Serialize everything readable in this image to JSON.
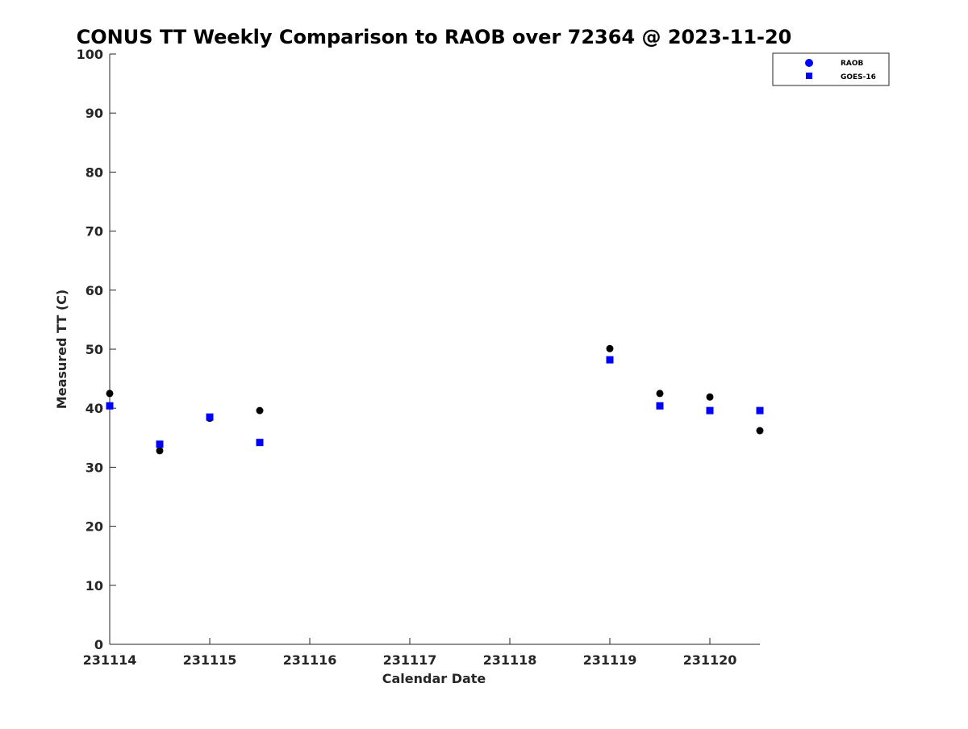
{
  "chart_data": {
    "type": "scatter",
    "title": "CONUS TT Weekly Comparison to RAOB over 72364 @ 2023-11-20",
    "xlabel": "Calendar Date",
    "ylabel": "Measured TT (C)",
    "xlim": [
      0,
      6.5
    ],
    "ylim": [
      0,
      100
    ],
    "x_ticks": [
      0,
      1,
      2,
      3,
      4,
      5,
      6
    ],
    "x_tick_labels": [
      "231114",
      "231115",
      "231116",
      "231117",
      "231118",
      "231119",
      "231120"
    ],
    "y_ticks": [
      0,
      10,
      20,
      30,
      40,
      50,
      60,
      70,
      80,
      90,
      100
    ],
    "y_tick_labels": [
      "0",
      "10",
      "20",
      "30",
      "40",
      "50",
      "60",
      "70",
      "80",
      "90",
      "100"
    ],
    "grid": false,
    "legend_position": "top-right",
    "series": [
      {
        "name": "RAOB",
        "marker": "circle",
        "color": "#000000",
        "legend_color": "#0000ff",
        "x": [
          0,
          0.5,
          1,
          1.5,
          5,
          5.5,
          6,
          6.5
        ],
        "y": [
          42.5,
          32.8,
          38.3,
          39.6,
          50.1,
          42.5,
          41.9,
          36.2
        ]
      },
      {
        "name": "GOES-16",
        "marker": "square",
        "color": "#0000ff",
        "legend_color": "#0000ff",
        "x": [
          0,
          0.5,
          1,
          1.5,
          5,
          5.5,
          6,
          6.5
        ],
        "y": [
          40.4,
          33.9,
          38.5,
          34.2,
          48.2,
          40.4,
          39.6,
          39.6
        ]
      }
    ]
  }
}
